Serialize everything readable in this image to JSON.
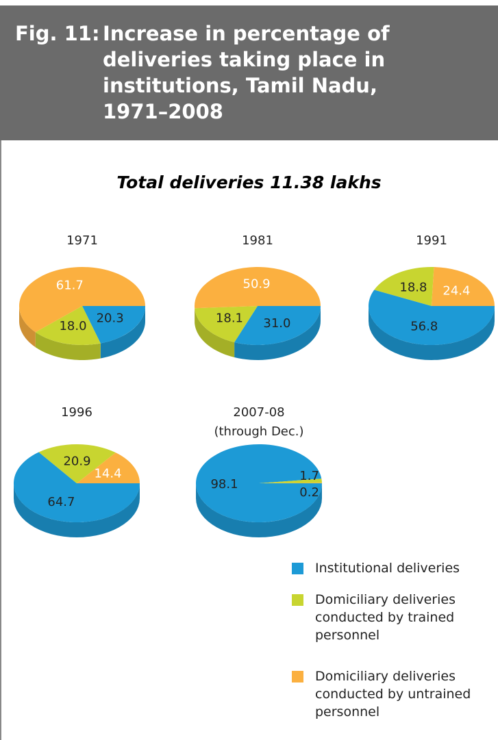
{
  "header": {
    "figure_label": "Fig. 11:",
    "title": "Increase in percentage of deliveries taking place in institutions, Tamil Nadu, 1971–2008"
  },
  "subtitle": "Total deliveries 11.38 lakhs",
  "legend": {
    "categories": [
      "Institutional deliveries",
      "Domiciliary deliveries conducted by trained personnel",
      "Domiciliary deliveries conducted by untrained personnel"
    ],
    "colors": [
      "#1d9ad6",
      "#c8d530",
      "#fbb040"
    ]
  },
  "chart_data": [
    {
      "type": "pie",
      "title": "1971",
      "values": [
        20.3,
        18.0,
        61.7
      ],
      "value_labels": [
        "20.3",
        "18.0",
        "61.7"
      ]
    },
    {
      "type": "pie",
      "title": "1981",
      "values": [
        31.0,
        18.1,
        50.9
      ],
      "value_labels": [
        "31.0",
        "18.1",
        "50.9"
      ]
    },
    {
      "type": "pie",
      "title": "1991",
      "values": [
        56.8,
        18.8,
        24.4
      ],
      "value_labels": [
        "56.8",
        "18.8",
        "24.4"
      ]
    },
    {
      "type": "pie",
      "title": "1996",
      "values": [
        64.7,
        20.9,
        14.4
      ],
      "value_labels": [
        "64.7",
        "20.9",
        "14.4"
      ]
    },
    {
      "type": "pie",
      "title": "2007-08",
      "subtitle": "(through Dec.)",
      "values": [
        98.1,
        1.7,
        0.2
      ],
      "value_labels": [
        "98.1",
        "1.7",
        "0.2"
      ]
    }
  ]
}
